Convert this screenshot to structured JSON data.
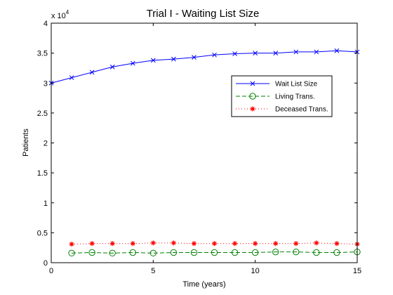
{
  "chart_data": {
    "type": "line",
    "title": "Trial I - Waiting List Size",
    "xlabel": "Time (years)",
    "ylabel": "Patients",
    "y_exponent_prefix": "x 10",
    "y_exponent_power": "4",
    "xlim": [
      0,
      15
    ],
    "ylim": [
      0,
      4
    ],
    "x_ticks": [
      0,
      5,
      10,
      15
    ],
    "x_tick_labels": [
      "0",
      "5",
      "10",
      "15"
    ],
    "y_ticks": [
      0,
      0.5,
      1,
      1.5,
      2,
      2.5,
      3,
      3.5,
      4
    ],
    "y_tick_labels": [
      "0",
      "0.5",
      "1",
      "1.5",
      "2",
      "2.5",
      "3",
      "3.5",
      "4"
    ],
    "grid": false,
    "legend_position": "upper-right",
    "series": [
      {
        "name": "Wait List Size",
        "color": "#0000ff",
        "line_style": "solid",
        "marker": "x",
        "x": [
          0,
          1,
          2,
          3,
          4,
          5,
          6,
          7,
          8,
          9,
          10,
          11,
          12,
          13,
          14,
          15
        ],
        "values": [
          3.0,
          3.09,
          3.18,
          3.27,
          3.33,
          3.38,
          3.4,
          3.43,
          3.47,
          3.49,
          3.5,
          3.5,
          3.52,
          3.52,
          3.54,
          3.52
        ]
      },
      {
        "name": "Living Trans.",
        "color": "#008000",
        "line_style": "dashed",
        "marker": "circle",
        "x": [
          1,
          2,
          3,
          4,
          5,
          6,
          7,
          8,
          9,
          10,
          11,
          12,
          13,
          14,
          15
        ],
        "values": [
          0.16,
          0.17,
          0.16,
          0.17,
          0.16,
          0.17,
          0.17,
          0.17,
          0.17,
          0.17,
          0.18,
          0.18,
          0.17,
          0.17,
          0.18
        ]
      },
      {
        "name": "Deceased Trans.",
        "color": "#ff0000",
        "line_style": "dotted",
        "marker": "star",
        "x": [
          1,
          2,
          3,
          4,
          5,
          6,
          7,
          8,
          9,
          10,
          11,
          12,
          13,
          14,
          15
        ],
        "values": [
          0.31,
          0.32,
          0.32,
          0.32,
          0.33,
          0.33,
          0.32,
          0.32,
          0.32,
          0.32,
          0.32,
          0.32,
          0.33,
          0.32,
          0.31
        ]
      }
    ]
  }
}
